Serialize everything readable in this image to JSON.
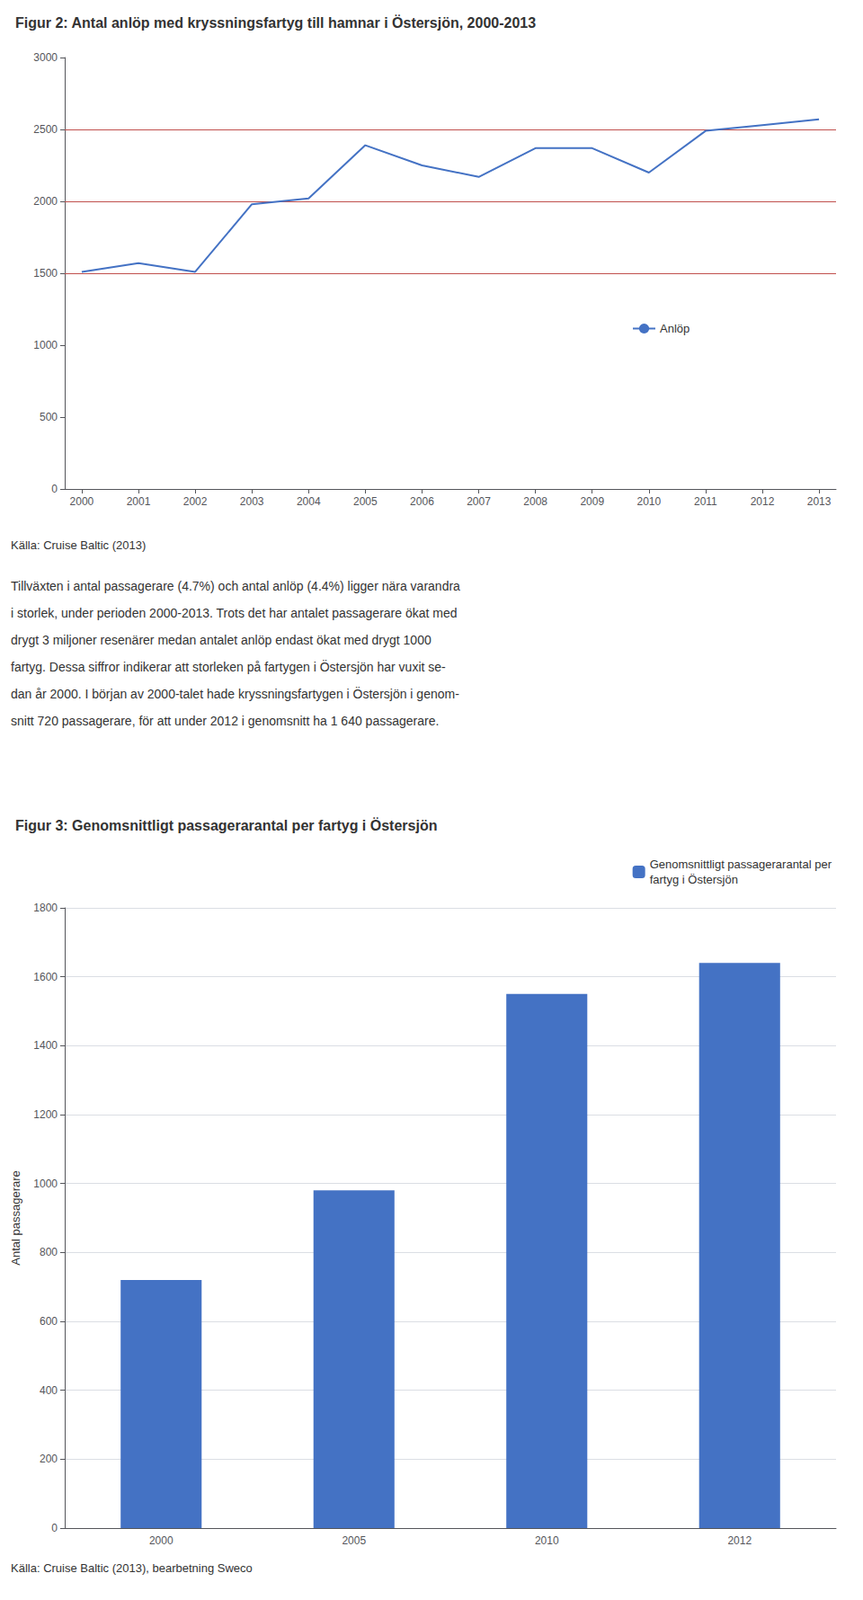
{
  "chart_data": [
    {
      "type": "line",
      "title": "Figur 2: Antal anlöp med kryssningsfartyg till hamnar i Östersjön, 2000-2013",
      "x": [
        2000,
        2001,
        2002,
        2003,
        2004,
        2005,
        2006,
        2007,
        2008,
        2009,
        2010,
        2011,
        2012,
        2013
      ],
      "series": [
        {
          "name": "Anlöp",
          "color": "#4472C4",
          "values": [
            1510,
            1570,
            1510,
            1980,
            2020,
            2390,
            2250,
            2170,
            2370,
            2370,
            2200,
            2490,
            2530,
            2570
          ]
        }
      ],
      "reference_lines": {
        "values": [
          1500,
          2000,
          2500
        ],
        "color": "#C0504D"
      },
      "xlim": [
        1999.7,
        2013.3
      ],
      "xticks": [
        2000,
        2001,
        2002,
        2003,
        2004,
        2005,
        2006,
        2007,
        2008,
        2009,
        2010,
        2011,
        2012,
        2013
      ],
      "ylim": [
        0,
        3000
      ],
      "yticks": [
        0,
        500,
        1000,
        1500,
        2000,
        2500,
        3000
      ],
      "grid": false,
      "legend": "right",
      "source": "Källa: Cruise Baltic (2013)",
      "annotations": [
        "Tillväxten i antal passagerare (4.7%) och antal anlöp (4.4%) ligger nära varandra",
        "i storlek, under perioden 2000-2013. Trots det har antalet passagerare ökat med",
        "drygt 3 miljoner resenärer medan antalet anlöp endast ökat med drygt 1000",
        "fartyg. Dessa siffror indikerar att storleken på fartygen i Östersjön har vuxit se-",
        "dan år 2000. I början av 2000-talet hade kryssningsfartygen i Östersjön i genom-",
        "snitt 720 passagerare, för att under 2012 i genomsnitt ha 1 640 passagerare."
      ]
    },
    {
      "type": "bar",
      "title": "Figur 3: Genomsnittligt passagerarantal per fartyg i Östersjön",
      "categories": [
        "2000",
        "2005",
        "2010",
        "2012"
      ],
      "series": [
        {
          "name": "Genomsnittligt passagerarantal per\nfartyg i Östersjön",
          "color": "#4472C4",
          "values": [
            720,
            980,
            1550,
            1640
          ]
        }
      ],
      "ylim": [
        0,
        1800
      ],
      "yticks": [
        0,
        200,
        400,
        600,
        800,
        1000,
        1200,
        1400,
        1600,
        1800
      ],
      "ylabel": "Antal passagerare",
      "grid": true,
      "legend": "upper right",
      "source": "Källa: Cruise Baltic (2013), bearbetning Sweco"
    }
  ]
}
